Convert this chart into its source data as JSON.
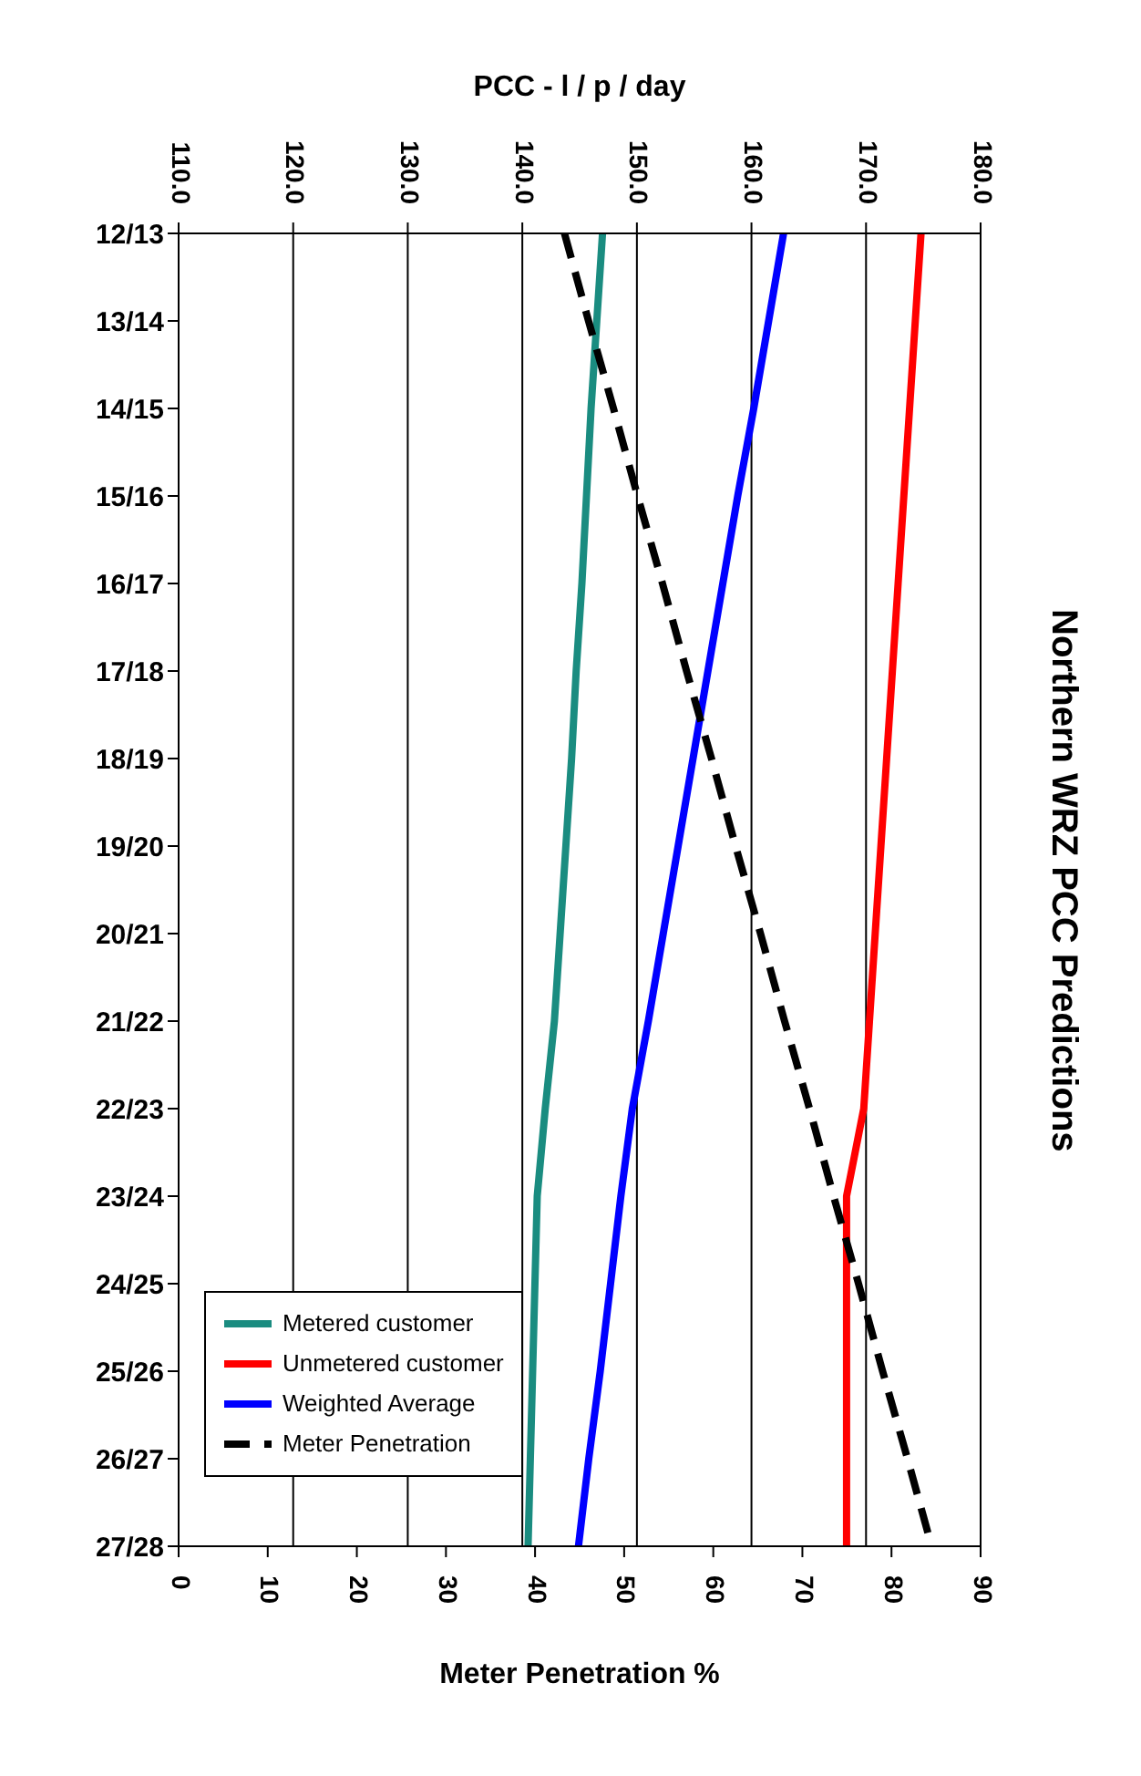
{
  "chart_data": {
    "type": "line",
    "title": "Northern WRZ PCC Predictions",
    "orientation": "horizontal",
    "categories": [
      "12/13",
      "13/14",
      "14/15",
      "15/16",
      "16/17",
      "17/18",
      "18/19",
      "19/20",
      "20/21",
      "21/22",
      "22/23",
      "23/24",
      "24/25",
      "25/26",
      "26/27",
      "27/28"
    ],
    "xlabel": "Meter Penetration %",
    "xlim": [
      0,
      90
    ],
    "xticks": [
      0,
      10,
      20,
      30,
      40,
      50,
      60,
      70,
      80,
      90
    ],
    "x2label": "PCC - l / p / day",
    "x2lim": [
      110,
      180
    ],
    "x2ticks": [
      {
        "value": 110,
        "label": "110.0"
      },
      {
        "value": 120,
        "label": "120.0"
      },
      {
        "value": 130,
        "label": "130.0"
      },
      {
        "value": 140,
        "label": "140.0"
      },
      {
        "value": 150,
        "label": "150.0"
      },
      {
        "value": 160,
        "label": "160.0"
      },
      {
        "value": 170,
        "label": "170.0"
      },
      {
        "value": 180,
        "label": "180.0"
      }
    ],
    "grid": "x2",
    "legend": "bottom left",
    "marker": "none",
    "series": [
      {
        "name": "Metered customer",
        "color": "#1a8c80",
        "axis": "x2",
        "line_style": "solid",
        "values": [
          147.0,
          146.5,
          146.0,
          145.6,
          145.2,
          144.7,
          144.3,
          143.8,
          143.3,
          142.8,
          142.0,
          141.3,
          141.1,
          140.9,
          140.7,
          140.5
        ]
      },
      {
        "name": "Unmetered customer",
        "color": "#ff0000",
        "axis": "x2",
        "line_style": "solid",
        "values": [
          174.8,
          174.3,
          173.8,
          173.3,
          172.8,
          172.3,
          171.8,
          171.3,
          170.8,
          170.3,
          169.8,
          168.3,
          168.3,
          168.3,
          168.3,
          168.3
        ]
      },
      {
        "name": "Weighted Average",
        "color": "#0000ff",
        "axis": "x2",
        "line_style": "solid",
        "values": [
          162.8,
          161.5,
          160.2,
          158.8,
          157.5,
          156.2,
          154.9,
          153.6,
          152.3,
          151.0,
          149.6,
          148.6,
          147.7,
          146.8,
          145.8,
          144.9
        ]
      },
      {
        "name": "Meter Penetration",
        "color": "#000000",
        "line_style": "dashed",
        "values": [
          43.3,
          46.0,
          48.8,
          51.5,
          54.3,
          57.0,
          59.8,
          62.5,
          65.3,
          68.0,
          70.8,
          73.5,
          76.3,
          79.0,
          81.8,
          84.5
        ]
      }
    ]
  }
}
